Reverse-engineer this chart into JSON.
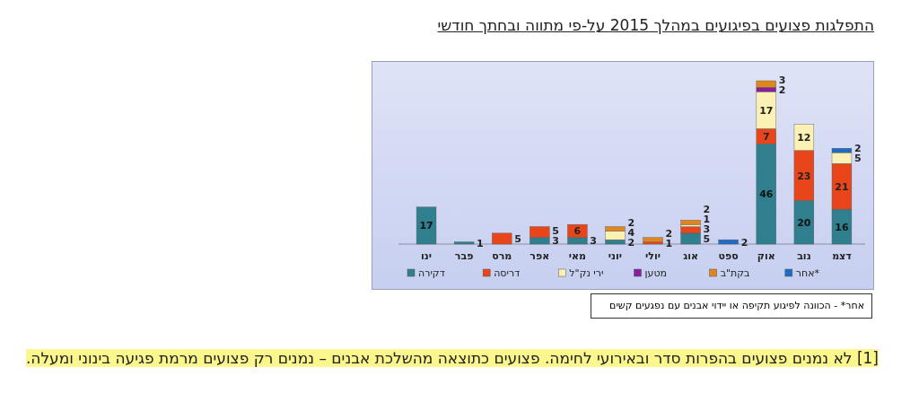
{
  "chart_data": {
    "type": "bar",
    "title": "התפלגות פצועים בפיגועים במהלך 2015 על-פי מתווה ובחתך חודשי",
    "categories": [
      "ינו",
      "פבר",
      "מרס",
      "אפר",
      "מאי",
      "יוני",
      "יולי",
      "אוג",
      "ספט",
      "אוק",
      "נוב",
      "דצמ"
    ],
    "stacked": true,
    "data_labels": true,
    "legend": "bottom",
    "series": [
      {
        "name": "דקירה",
        "color": "#2f7f8e",
        "values": [
          17,
          1,
          null,
          3,
          3,
          2,
          null,
          5,
          null,
          46,
          20,
          16
        ]
      },
      {
        "name": "דריסה",
        "color": "#e8461a",
        "values": [
          null,
          null,
          5,
          5,
          6,
          null,
          1,
          3,
          null,
          7,
          23,
          21
        ]
      },
      {
        "name": "ירי נק\"ל",
        "color": "#fbf1b4",
        "values": [
          null,
          null,
          null,
          null,
          null,
          4,
          null,
          1,
          null,
          17,
          12,
          5
        ]
      },
      {
        "name": "מטען",
        "color": "#8a1f9e",
        "values": [
          null,
          null,
          null,
          null,
          null,
          null,
          null,
          null,
          null,
          2,
          null,
          null
        ]
      },
      {
        "name": "בקת\"ב",
        "color": "#e0861c",
        "values": [
          null,
          null,
          null,
          null,
          null,
          2,
          2,
          2,
          null,
          3,
          null,
          null
        ]
      },
      {
        "name": "אחר*",
        "color": "#1f6cc4",
        "values": [
          null,
          null,
          null,
          null,
          null,
          null,
          null,
          null,
          2,
          null,
          null,
          2
        ]
      }
    ],
    "annotations": [
      "אחר* - הכוונה לפיגוע תקיפה או יידוי אבנים עם נפגעים קשים",
      "[1] לא נמנים פצועים בהפרות סדר ובאירועי לחימה. פצועים כתוצאה מהשלכת אבנים – נמנים רק פצועים מרמת פגיעה בינוני ומעלה."
    ]
  }
}
